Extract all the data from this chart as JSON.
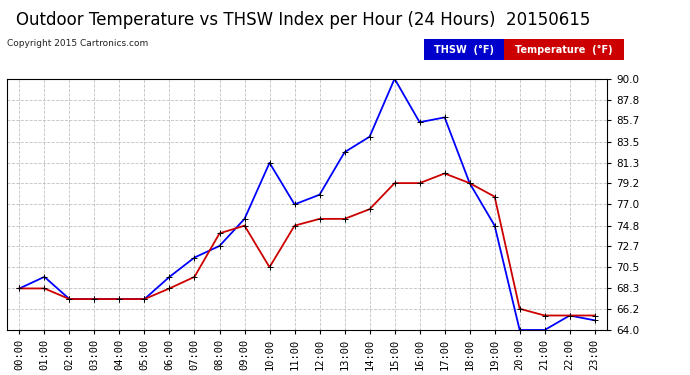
{
  "title": "Outdoor Temperature vs THSW Index per Hour (24 Hours)  20150615",
  "copyright": "Copyright 2015 Cartronics.com",
  "hours": [
    "00:00",
    "01:00",
    "02:00",
    "03:00",
    "04:00",
    "05:00",
    "06:00",
    "07:00",
    "08:00",
    "09:00",
    "10:00",
    "11:00",
    "12:00",
    "13:00",
    "14:00",
    "15:00",
    "16:00",
    "17:00",
    "18:00",
    "19:00",
    "20:00",
    "21:00",
    "22:00",
    "23:00"
  ],
  "thsw": [
    68.3,
    69.5,
    67.2,
    67.2,
    67.2,
    67.2,
    69.5,
    71.5,
    72.7,
    75.5,
    81.3,
    77.0,
    78.0,
    82.4,
    84.0,
    90.0,
    85.5,
    86.0,
    79.2,
    74.8,
    64.0,
    64.0,
    65.5,
    65.0
  ],
  "temp": [
    68.3,
    68.3,
    67.2,
    67.2,
    67.2,
    67.2,
    68.3,
    69.5,
    74.0,
    74.8,
    70.5,
    74.8,
    75.5,
    75.5,
    76.5,
    79.2,
    79.2,
    80.2,
    79.2,
    77.8,
    66.2,
    65.5,
    65.5,
    65.5
  ],
  "thsw_color": "#0000ff",
  "temp_color": "#cc0000",
  "marker": "+",
  "markersize": 5,
  "linewidth": 1.3,
  "ylim": [
    64.0,
    90.0
  ],
  "yticks": [
    64.0,
    66.2,
    68.3,
    70.5,
    72.7,
    74.8,
    77.0,
    79.2,
    81.3,
    83.5,
    85.7,
    87.8,
    90.0
  ],
  "background_color": "#ffffff",
  "plot_bg": "#ffffff",
  "grid_color": "#bbbbbb",
  "title_fontsize": 12,
  "axis_fontsize": 7.5,
  "legend_thsw_bg": "#0000cc",
  "legend_temp_bg": "#cc0000",
  "legend_text_thsw": "THSW  (°F)",
  "legend_text_temp": "Temperature  (°F)"
}
